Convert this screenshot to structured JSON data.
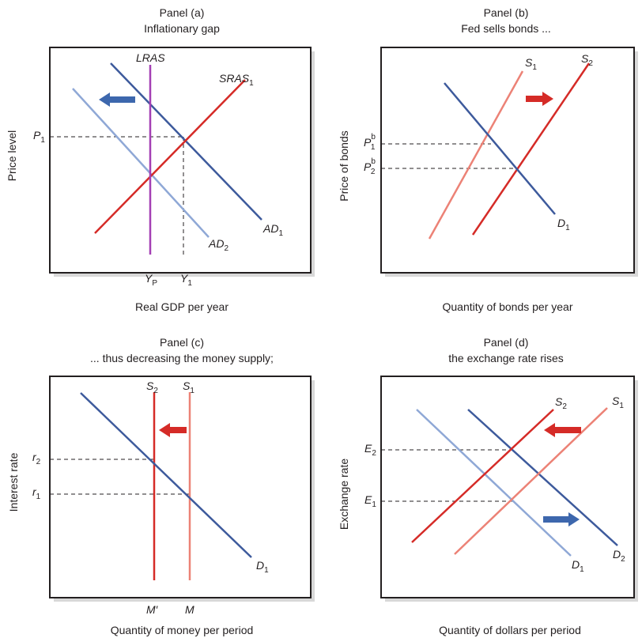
{
  "colors": {
    "dark_blue": "#3d5a9c",
    "light_blue": "#8fa8d6",
    "red": "#d52b27",
    "light_red": "#ec8276",
    "purple": "#a43fb4",
    "arrow_blue": "#3d67ad",
    "arrow_red": "#d52b27"
  },
  "panels": {
    "a": {
      "title": "Panel (a)",
      "subtitle": "Inflationary gap",
      "xlabel": "Real GDP per year",
      "ylabel": "Price level",
      "labels": {
        "lras": "LRAS",
        "sras_base": "SRAS",
        "sras_sub": "1",
        "ad1_base": "AD",
        "ad1_sub": "1",
        "ad2_base": "AD",
        "ad2_sub": "2",
        "p1_base": "P",
        "p1_sub": "1",
        "yp_base": "Y",
        "yp_sub": "P",
        "y1_base": "Y",
        "y1_sub": "1"
      }
    },
    "b": {
      "title": "Panel (b)",
      "subtitle": "Fed sells bonds ...",
      "xlabel": "Quantity of bonds per year",
      "ylabel": "Price of bonds",
      "labels": {
        "s1_base": "S",
        "s1_sub": "1",
        "s2_base": "S",
        "s2_sub": "2",
        "d1_base": "D",
        "d1_sub": "1",
        "p1_base": "P",
        "p1_sup": "b",
        "p1_sub": "1",
        "p2_base": "P",
        "p2_sup": "b",
        "p2_sub": "2"
      }
    },
    "c": {
      "title": "Panel (c)",
      "subtitle": "... thus decreasing the money supply;",
      "xlabel": "Quantity of money per period",
      "ylabel": "Interest rate",
      "labels": {
        "s2_base": "S",
        "s2_sub": "2",
        "s1_base": "S",
        "s1_sub": "1",
        "d1_base": "D",
        "d1_sub": "1",
        "r2_base": "r",
        "r2_sub": "2",
        "r1_base": "r",
        "r1_sub": "1",
        "mprime": "M′",
        "m": "M"
      }
    },
    "d": {
      "title": "Panel (d)",
      "subtitle": "the exchange rate rises",
      "xlabel": "Quantity of dollars per period",
      "ylabel": "Exchange rate",
      "labels": {
        "s2_base": "S",
        "s2_sub": "2",
        "s1_base": "S",
        "s1_sub": "1",
        "d1_base": "D",
        "d1_sub": "1",
        "d2_base": "D",
        "d2_sub": "2",
        "e2_base": "E",
        "e2_sub": "2",
        "e1_base": "E",
        "e1_sub": "1"
      }
    }
  }
}
